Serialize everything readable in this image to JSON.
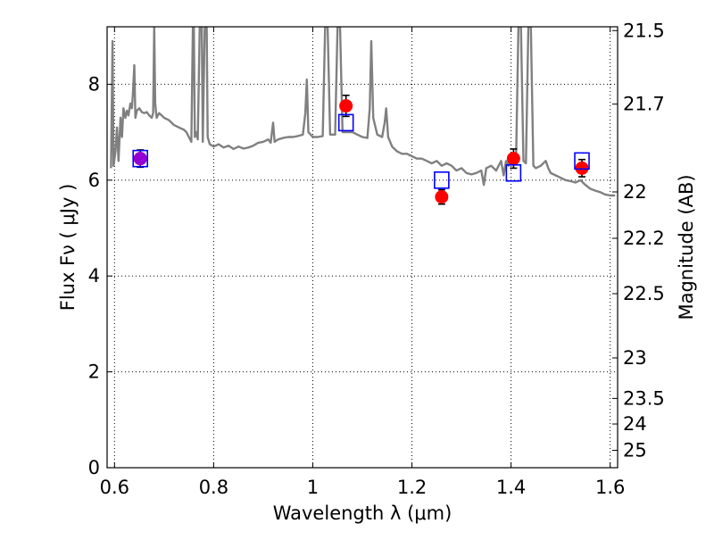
{
  "chart_data": {
    "type": "line",
    "title": "",
    "xlabel": "Wavelength  λ (μm)",
    "ylabel": "Flux  Fν  ( μJy )",
    "ylabel_right": "Magnitude (AB)",
    "xlim": [
      0.585,
      1.615
    ],
    "ylim": [
      0,
      9.2
    ],
    "x_ticks": [
      {
        "value": 0.6,
        "label": "0.6"
      },
      {
        "value": 0.8,
        "label": "0.8"
      },
      {
        "value": 1.0,
        "label": "1"
      },
      {
        "value": 1.2,
        "label": "1.2"
      },
      {
        "value": 1.4,
        "label": "1.4"
      },
      {
        "value": 1.6,
        "label": "1.6"
      }
    ],
    "y_ticks": [
      {
        "value": 0,
        "label": "0"
      },
      {
        "value": 2,
        "label": "2"
      },
      {
        "value": 4,
        "label": "4"
      },
      {
        "value": 6,
        "label": "6"
      },
      {
        "value": 8,
        "label": "8"
      }
    ],
    "right_ticks": [
      {
        "mag": 21.5,
        "label": "21.5"
      },
      {
        "mag": 21.7,
        "label": "21.7"
      },
      {
        "mag": 22.0,
        "label": "22"
      },
      {
        "mag": 22.2,
        "label": "22.2"
      },
      {
        "mag": 22.5,
        "label": "22.5"
      },
      {
        "mag": 23.0,
        "label": "23"
      },
      {
        "mag": 23.5,
        "label": "23.5"
      },
      {
        "mag": 24.0,
        "label": "24"
      },
      {
        "mag": 25.0,
        "label": "25"
      }
    ],
    "grid": true,
    "series": [
      {
        "style": "line",
        "color": "#808080",
        "points": [
          [
            0.593,
            6.25
          ],
          [
            0.596,
            8.9
          ],
          [
            0.598,
            6.3
          ],
          [
            0.602,
            6.6
          ],
          [
            0.605,
            7.1
          ],
          [
            0.608,
            6.4
          ],
          [
            0.612,
            7.3
          ],
          [
            0.615,
            6.9
          ],
          [
            0.618,
            7.5
          ],
          [
            0.622,
            7.3
          ],
          [
            0.625,
            7.45
          ],
          [
            0.628,
            7.35
          ],
          [
            0.632,
            7.6
          ],
          [
            0.635,
            7.5
          ],
          [
            0.637,
            7.8
          ],
          [
            0.64,
            8.4
          ],
          [
            0.642,
            7.3
          ],
          [
            0.645,
            7.45
          ],
          [
            0.65,
            7.5
          ],
          [
            0.655,
            7.42
          ],
          [
            0.66,
            7.4
          ],
          [
            0.665,
            7.42
          ],
          [
            0.67,
            7.35
          ],
          [
            0.675,
            7.3
          ],
          [
            0.678,
            7.4
          ],
          [
            0.68,
            9.2
          ],
          [
            0.682,
            7.6
          ],
          [
            0.685,
            7.3
          ],
          [
            0.69,
            7.4
          ],
          [
            0.695,
            7.35
          ],
          [
            0.7,
            7.3
          ],
          [
            0.71,
            7.25
          ],
          [
            0.72,
            7.15
          ],
          [
            0.73,
            7.1
          ],
          [
            0.74,
            7.05
          ],
          [
            0.745,
            7.0
          ],
          [
            0.75,
            6.9
          ],
          [
            0.755,
            6.8
          ],
          [
            0.758,
            9.2
          ],
          [
            0.76,
            9.2
          ],
          [
            0.762,
            6.9
          ],
          [
            0.765,
            7.0
          ],
          [
            0.768,
            6.85
          ],
          [
            0.772,
            9.2
          ],
          [
            0.776,
            9.2
          ],
          [
            0.778,
            6.8
          ],
          [
            0.782,
            9.2
          ],
          [
            0.786,
            9.2
          ],
          [
            0.788,
            6.9
          ],
          [
            0.792,
            6.75
          ],
          [
            0.8,
            6.7
          ],
          [
            0.81,
            6.75
          ],
          [
            0.82,
            6.68
          ],
          [
            0.83,
            6.72
          ],
          [
            0.84,
            6.65
          ],
          [
            0.85,
            6.7
          ],
          [
            0.86,
            6.66
          ],
          [
            0.87,
            6.68
          ],
          [
            0.88,
            6.72
          ],
          [
            0.89,
            6.78
          ],
          [
            0.9,
            6.8
          ],
          [
            0.91,
            6.85
          ],
          [
            0.915,
            6.78
          ],
          [
            0.92,
            7.2
          ],
          [
            0.923,
            6.8
          ],
          [
            0.93,
            6.85
          ],
          [
            0.94,
            6.88
          ],
          [
            0.95,
            6.9
          ],
          [
            0.96,
            6.9
          ],
          [
            0.97,
            6.92
          ],
          [
            0.98,
            6.95
          ],
          [
            0.985,
            7.4
          ],
          [
            0.988,
            8.1
          ],
          [
            0.991,
            7.0
          ],
          [
            1.0,
            6.9
          ],
          [
            1.01,
            6.9
          ],
          [
            1.02,
            6.92
          ],
          [
            1.025,
            9.2
          ],
          [
            1.03,
            9.2
          ],
          [
            1.035,
            6.95
          ],
          [
            1.045,
            6.95
          ],
          [
            1.05,
            9.2
          ],
          [
            1.055,
            9.2
          ],
          [
            1.06,
            7.0
          ],
          [
            1.07,
            7.0
          ],
          [
            1.08,
            7.0
          ],
          [
            1.09,
            6.95
          ],
          [
            1.1,
            6.9
          ],
          [
            1.11,
            6.88
          ],
          [
            1.115,
            7.5
          ],
          [
            1.118,
            8.9
          ],
          [
            1.122,
            7.3
          ],
          [
            1.13,
            6.95
          ],
          [
            1.14,
            6.9
          ],
          [
            1.145,
            7.2
          ],
          [
            1.148,
            7.5
          ],
          [
            1.152,
            6.9
          ],
          [
            1.16,
            6.7
          ],
          [
            1.17,
            6.6
          ],
          [
            1.18,
            6.55
          ],
          [
            1.19,
            6.55
          ],
          [
            1.2,
            6.5
          ],
          [
            1.21,
            6.45
          ],
          [
            1.22,
            6.45
          ],
          [
            1.23,
            6.4
          ],
          [
            1.24,
            6.35
          ],
          [
            1.25,
            6.4
          ],
          [
            1.26,
            6.3
          ],
          [
            1.27,
            6.35
          ],
          [
            1.28,
            6.3
          ],
          [
            1.29,
            6.2
          ],
          [
            1.3,
            6.25
          ],
          [
            1.31,
            6.15
          ],
          [
            1.32,
            6.12
          ],
          [
            1.33,
            6.15
          ],
          [
            1.34,
            6.2
          ],
          [
            1.345,
            5.9
          ],
          [
            1.35,
            6.25
          ],
          [
            1.36,
            6.3
          ],
          [
            1.37,
            6.2
          ],
          [
            1.38,
            6.4
          ],
          [
            1.385,
            6.1
          ],
          [
            1.39,
            6.4
          ],
          [
            1.395,
            6.3
          ],
          [
            1.4,
            6.5
          ],
          [
            1.41,
            6.4
          ],
          [
            1.415,
            9.2
          ],
          [
            1.42,
            9.2
          ],
          [
            1.425,
            6.4
          ],
          [
            1.43,
            6.35
          ],
          [
            1.435,
            9.2
          ],
          [
            1.44,
            9.2
          ],
          [
            1.445,
            6.3
          ],
          [
            1.45,
            6.25
          ],
          [
            1.46,
            6.3
          ],
          [
            1.47,
            6.4
          ],
          [
            1.475,
            6.25
          ],
          [
            1.48,
            6.15
          ],
          [
            1.49,
            6.1
          ],
          [
            1.5,
            6.05
          ],
          [
            1.51,
            6.0
          ],
          [
            1.52,
            5.98
          ],
          [
            1.53,
            5.95
          ],
          [
            1.54,
            6.0
          ],
          [
            1.55,
            5.9
          ],
          [
            1.56,
            5.82
          ],
          [
            1.57,
            5.78
          ],
          [
            1.58,
            5.75
          ],
          [
            1.59,
            5.7
          ],
          [
            1.6,
            5.68
          ],
          [
            1.61,
            5.68
          ]
        ]
      },
      {
        "style": "points",
        "marker": "circle",
        "color": "#ff0000",
        "errorbars": true,
        "points": [
          {
            "x": 0.652,
            "y": 6.45,
            "err": 0.18
          },
          {
            "x": 1.067,
            "y": 7.55,
            "err": 0.22
          },
          {
            "x": 1.26,
            "y": 5.65,
            "err": 0.15
          },
          {
            "x": 1.405,
            "y": 6.45,
            "err": 0.2
          },
          {
            "x": 1.543,
            "y": 6.25,
            "err": 0.18
          }
        ]
      },
      {
        "style": "points",
        "marker": "square",
        "color": "#0000ff",
        "points": [
          {
            "x": 0.652,
            "y": 6.45
          },
          {
            "x": 1.067,
            "y": 7.2
          },
          {
            "x": 1.26,
            "y": 6.0
          },
          {
            "x": 1.405,
            "y": 6.15
          },
          {
            "x": 1.543,
            "y": 6.4
          }
        ]
      },
      {
        "style": "points",
        "marker": "circle",
        "color": "#9400d3",
        "points": [
          {
            "x": 0.652,
            "y": 6.45
          }
        ]
      }
    ]
  }
}
